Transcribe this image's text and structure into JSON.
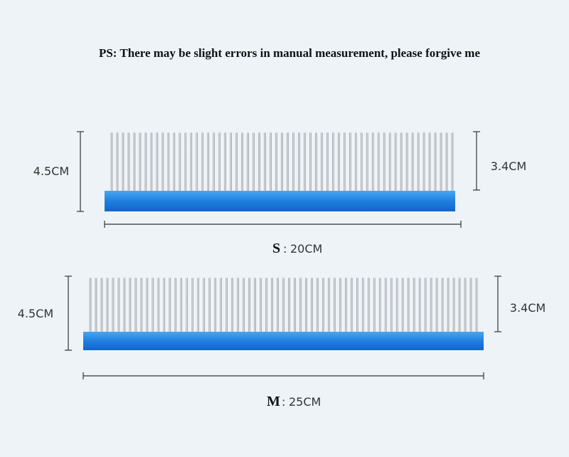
{
  "note": "PS: There may be slight errors in manual measurement, please forgive me",
  "combs": [
    {
      "total_height": "4.5CM",
      "teeth_height": "3.4CM",
      "size": "S",
      "separator": ":",
      "length": "20CM"
    },
    {
      "total_height": "4.5CM",
      "teeth_height": "3.4CM",
      "size": "M",
      "separator": ":",
      "length": "25CM"
    }
  ]
}
